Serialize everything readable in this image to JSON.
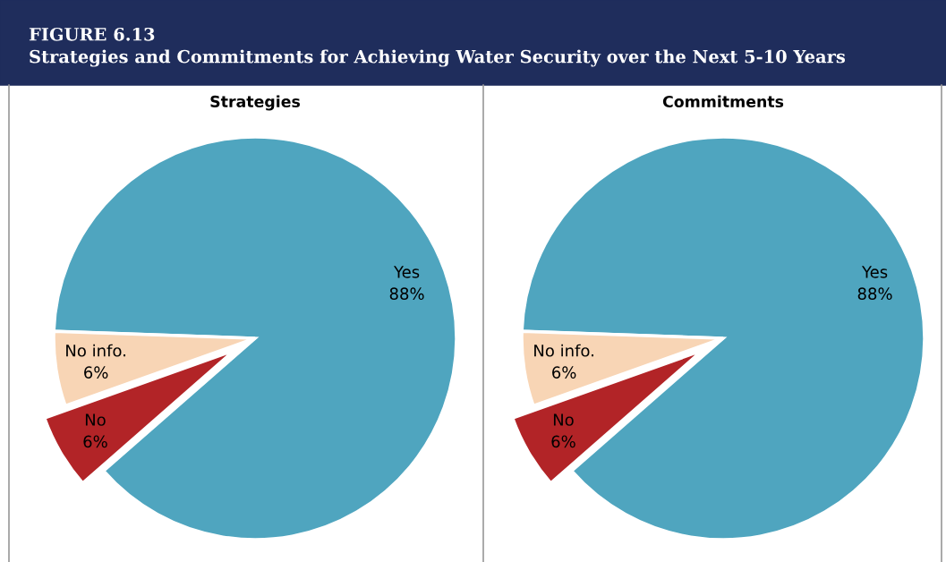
{
  "chart_data": [
    {
      "type": "pie",
      "title": "Strategies",
      "categories": [
        "Yes",
        "No info.",
        "No"
      ],
      "values": [
        88,
        6,
        6
      ],
      "colors": [
        "#4fa5bf",
        "#f8d5b5",
        "#b22427"
      ],
      "value_labels": [
        "88%",
        "6%",
        "6%"
      ],
      "annotations": [
        "FIGURE 6.13",
        "Strategies and Commitments for Achieving Water Security over the Next 5-10 Years"
      ]
    },
    {
      "type": "pie",
      "title": "Commitments",
      "categories": [
        "Yes",
        "No info.",
        "No"
      ],
      "values": [
        88,
        6,
        6
      ],
      "colors": [
        "#4fa5bf",
        "#f8d5b5",
        "#b22427"
      ],
      "value_labels": [
        "88%",
        "6%",
        "6%"
      ]
    }
  ]
}
